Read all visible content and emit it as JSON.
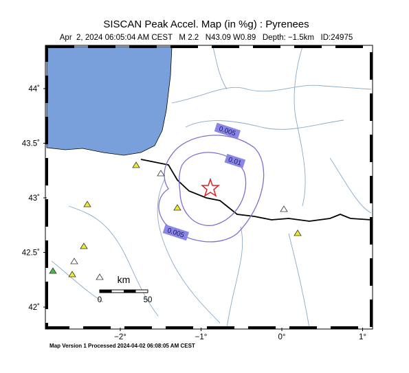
{
  "header": {
    "title": "SISCAN Peak Accel. Map (in %g) : Pyrenees",
    "subtitle": "Apr  2, 2024 06:05:04 AM CEST   M 2.2   N43.09 W0.89   Depth: −1.5km   ID:24975"
  },
  "axes": {
    "x_ticks": [
      {
        "value": -2,
        "label": "−2°"
      },
      {
        "value": -1,
        "label": "−1°"
      },
      {
        "value": 0,
        "label": "0°"
      },
      {
        "value": 1,
        "label": "1°"
      }
    ],
    "y_ticks": [
      {
        "value": 44,
        "label": "44˚"
      },
      {
        "value": 43.5,
        "label": "43.5˚"
      },
      {
        "value": 43,
        "label": "43˚"
      },
      {
        "value": 42.5,
        "label": "42.5˚"
      },
      {
        "value": 42,
        "label": "42˚"
      }
    ]
  },
  "contours": [
    "0.005",
    "0.01",
    "0.005"
  ],
  "scale_bar": {
    "unit": "km",
    "start": "0",
    "end": "50"
  },
  "footer": "Map Version 1 Processed 2024-04-02 06:08:05 AM CEST"
}
